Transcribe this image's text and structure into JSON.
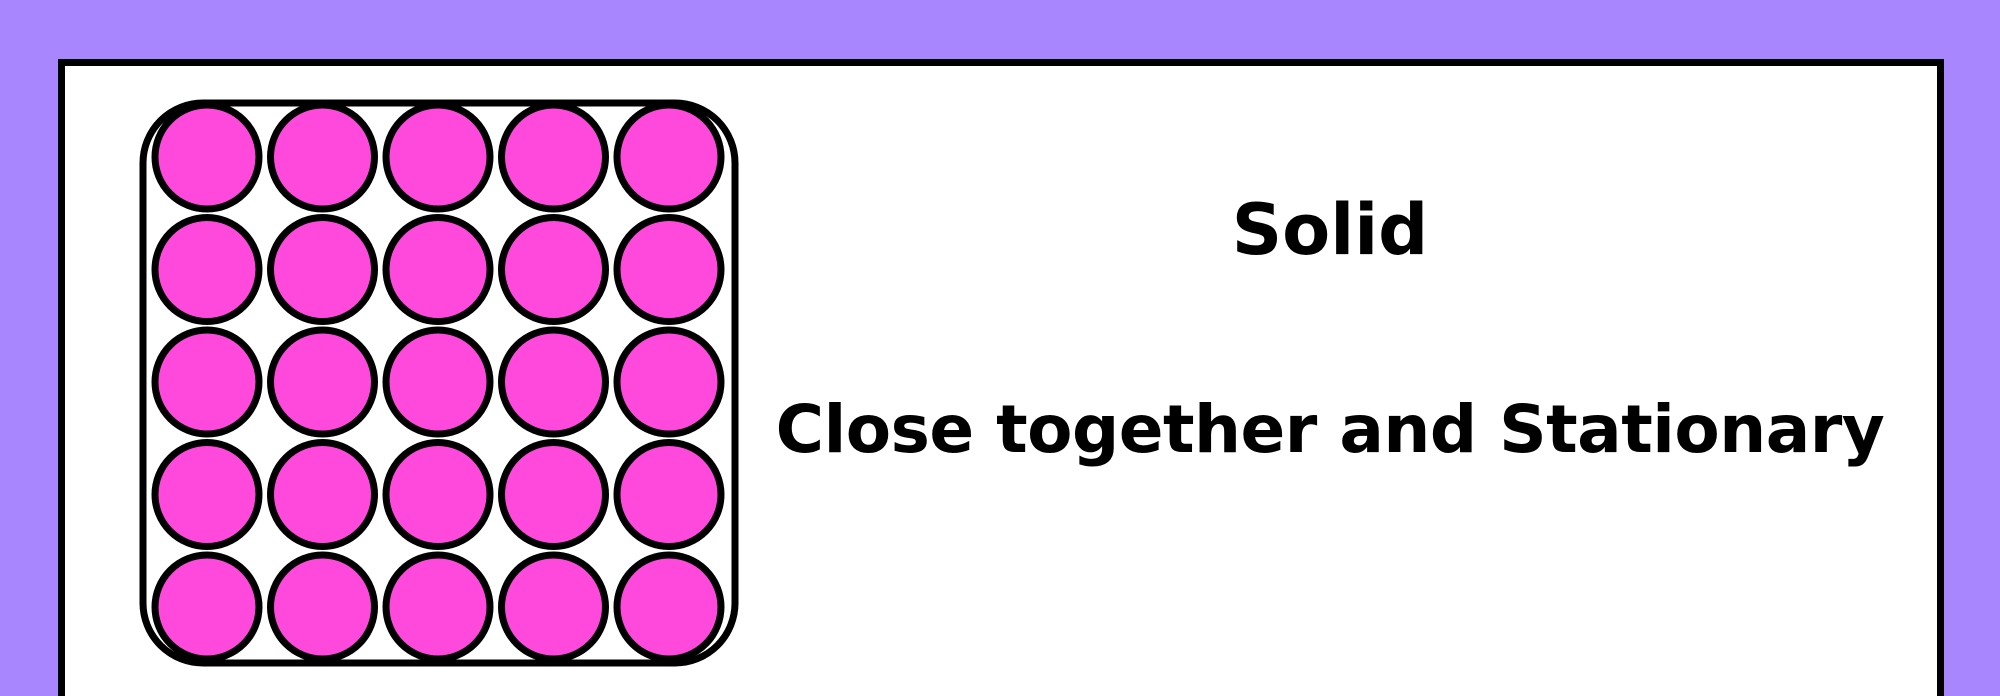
{
  "colors": {
    "background": "#a886fd",
    "card": "#ffffff",
    "outline": "#000000",
    "particle": "#ff48dc"
  },
  "diagram": {
    "state": "solid",
    "particle_arrangement": {
      "rows": 5,
      "columns": 5
    },
    "container_icon": "rounded-square-container"
  },
  "labels": {
    "title": "Solid",
    "description": "Close together and Stationary"
  }
}
